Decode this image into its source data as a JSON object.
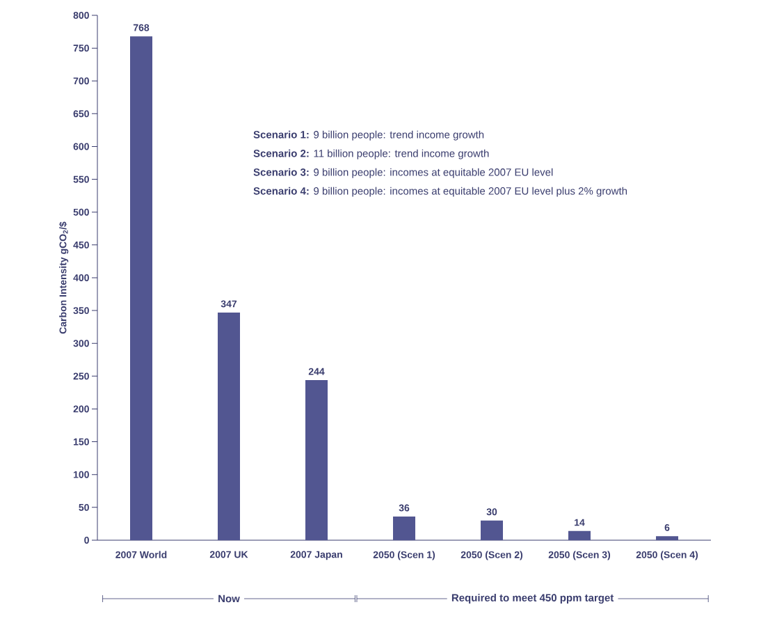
{
  "chart_data": {
    "type": "bar",
    "ylabel": "Carbon Intensity gCO$_{2}$/$",
    "categories": [
      "2007 World",
      "2007 UK",
      "2007 Japan",
      "2050 (Scen 1)",
      "2050 (Scen 2)",
      "2050 (Scen 3)",
      "2050 (Scen 4)"
    ],
    "values": [
      768,
      347,
      244,
      36,
      30,
      14,
      6
    ],
    "color": "#525691",
    "ylim": [
      0,
      800
    ],
    "yticks": [
      0,
      50,
      100,
      150,
      200,
      250,
      300,
      350,
      400,
      450,
      500,
      550,
      600,
      650,
      700,
      750,
      800
    ],
    "data_labels": true,
    "grid": false,
    "annotations": [
      "**Scenario 1:** 9 billion people: trend income growth",
      "**Scenario 2:** 11 billion people: trend income growth",
      "**Scenario 3:** 9 billion people: incomes at equitable 2007 EU level",
      "**Scenario 4:** 9 billion people: incomes at equitable 2007 EU level plus 2% growth",
      "Now",
      "Required to meet 450 ppm target"
    ]
  }
}
